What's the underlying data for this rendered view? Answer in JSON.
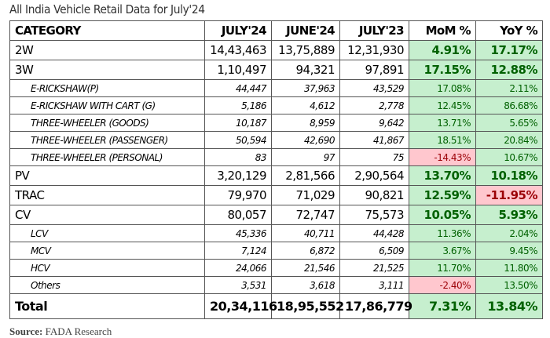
{
  "title": "All India Vehicle Retail Data for July'24",
  "headers": [
    "CATEGORY",
    "JULY'24",
    "JUNE'24",
    "JULY'23",
    "MoM %",
    "YoY %"
  ],
  "rows": [
    {
      "level": "main",
      "cells": [
        "2W",
        "14,43,463",
        "13,75,889",
        "12,31,930",
        "4.91%",
        "17.17%"
      ]
    },
    {
      "level": "main",
      "cells": [
        "3W",
        "1,10,497",
        "94,321",
        "97,891",
        "17.15%",
        "12.88%"
      ]
    },
    {
      "level": "sub",
      "cells": [
        "E-RICKSHAW(P)",
        "44,447",
        "37,963",
        "43,529",
        "17.08%",
        "2.11%"
      ]
    },
    {
      "level": "sub",
      "cells": [
        "E-RICKSHAW WITH CART (G)",
        "5,186",
        "4,612",
        "2,778",
        "12.45%",
        "86.68%"
      ]
    },
    {
      "level": "sub",
      "cells": [
        "THREE-WHEELER (GOODS)",
        "10,187",
        "8,959",
        "9,642",
        "13.71%",
        "5.65%"
      ]
    },
    {
      "level": "sub",
      "cells": [
        "THREE-WHEELER (PASSENGER)",
        "50,594",
        "42,690",
        "41,867",
        "18.51%",
        "20.84%"
      ]
    },
    {
      "level": "sub",
      "cells": [
        "THREE-WHEELER (PERSONAL)",
        "83",
        "97",
        "75",
        "-14.43%",
        "10.67%"
      ]
    },
    {
      "level": "main",
      "cells": [
        "PV",
        "3,20,129",
        "2,81,566",
        "2,90,564",
        "13.70%",
        "10.18%"
      ]
    },
    {
      "level": "main",
      "cells": [
        "TRAC",
        "79,970",
        "71,029",
        "90,821",
        "12.59%",
        "-11.95%"
      ]
    },
    {
      "level": "main",
      "cells": [
        "CV",
        "80,057",
        "72,747",
        "75,573",
        "10.05%",
        "5.93%"
      ]
    },
    {
      "level": "sub",
      "cells": [
        "LCV",
        "45,336",
        "40,711",
        "44,428",
        "11.36%",
        "2.04%"
      ]
    },
    {
      "level": "sub",
      "cells": [
        "MCV",
        "7,124",
        "6,872",
        "6,509",
        "3.67%",
        "9.45%"
      ]
    },
    {
      "level": "sub",
      "cells": [
        "HCV",
        "24,066",
        "21,546",
        "21,525",
        "11.70%",
        "11.80%"
      ]
    },
    {
      "level": "sub",
      "cells": [
        "Others",
        "3,531",
        "3,618",
        "3,111",
        "-2.40%",
        "13.50%"
      ]
    },
    {
      "level": "total",
      "cells": [
        "Total",
        "20,34,116",
        "18,95,552",
        "17,86,779",
        "7.31%",
        "13.84%"
      ]
    }
  ],
  "colors": {
    "positive_bg": "#c6efce",
    "positive_text": "#006100",
    "negative_bg": "#ffc7ce",
    "negative_text": "#9c0006"
  },
  "source": {
    "label": "Source:",
    "text": " FADA Research"
  }
}
